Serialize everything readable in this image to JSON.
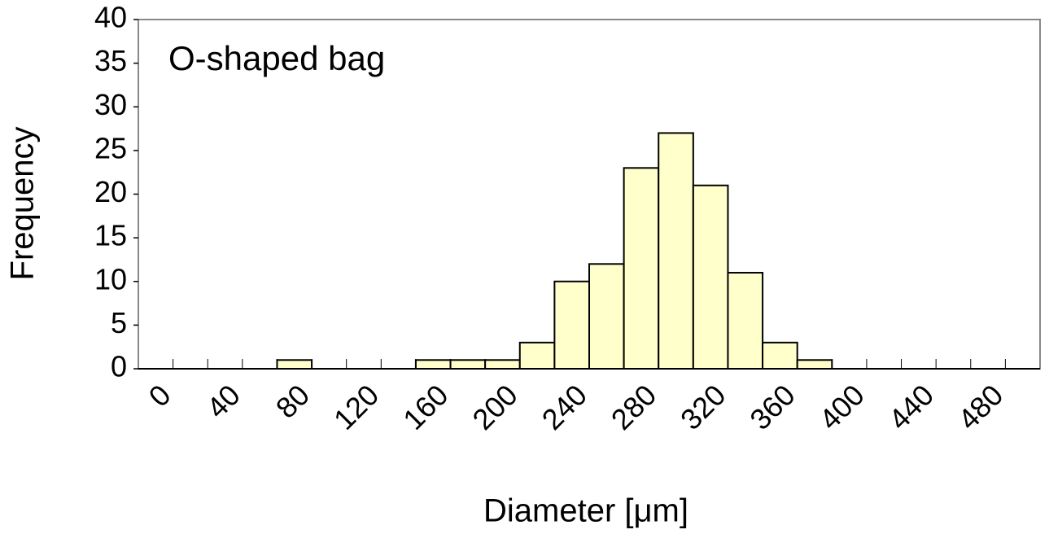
{
  "chart_data": {
    "type": "bar",
    "title": "O-shaped bag",
    "x_label": "Diameter [μm]",
    "y_label": "Frequency",
    "categories": [
      "0",
      null,
      "40",
      null,
      "80",
      null,
      "120",
      null,
      "160",
      null,
      "200",
      null,
      "240",
      null,
      "280",
      null,
      "320",
      null,
      "360",
      null,
      "400",
      null,
      "440",
      null,
      "480",
      null
    ],
    "values": [
      0,
      0,
      0,
      0,
      1,
      0,
      0,
      0,
      1,
      1,
      1,
      3,
      10,
      12,
      23,
      27,
      21,
      11,
      3,
      1,
      0,
      0,
      0,
      0,
      0,
      0
    ],
    "color": "#ffffcc",
    "ylim": [
      0,
      40
    ],
    "yticks": [
      0,
      5,
      10,
      15,
      20,
      25,
      30,
      35,
      40
    ],
    "grid": false
  }
}
